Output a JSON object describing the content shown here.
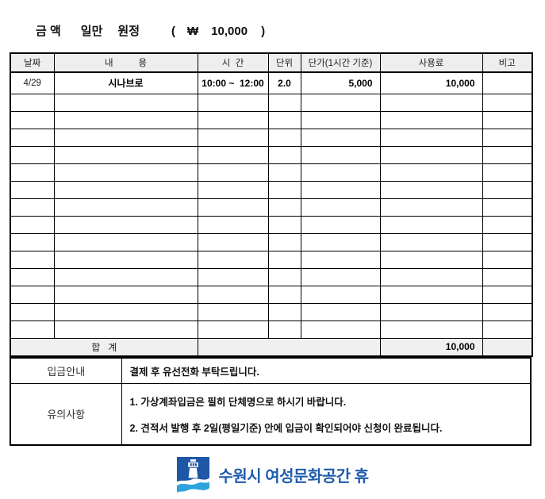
{
  "amount_line": {
    "label": "금 액",
    "amount_korean": "일만",
    "unit": "원정",
    "paren_open": "(",
    "currency_symbol": "₩",
    "amount_number": "10,000",
    "paren_close": ")"
  },
  "table": {
    "headers": {
      "date": "날짜",
      "content": "내          용",
      "time": "시  간",
      "unit": "단위",
      "unit_price": "단가(1시간 기준)",
      "fee": "사용료",
      "note": "비고"
    },
    "row": {
      "date": "4/29",
      "content": "시나브로",
      "time": "10:00 ~  12:00",
      "unit": "2.0",
      "unit_price": "5,000",
      "fee": "10,000",
      "note": ""
    },
    "empty_row_count": 14,
    "total": {
      "label": "합   계",
      "fee": "10,000"
    }
  },
  "info": {
    "payment_label": "입금안내",
    "payment_text": "결제 후 유선전화 부탁드립니다.",
    "notice_label": "유의사항",
    "notice_lines": [
      "1. 가상계좌입금은 필히 단체명으로 하시기 바랍니다.",
      "2. 견적서 발행 후 2일(평일기준) 안에 입금이 확인되어야 신청이 완료됩니다."
    ]
  },
  "footer": {
    "org_name": "수원시 여성문화공간 휴"
  },
  "colors": {
    "header_bg": "#eeeeee",
    "total_bg": "#f0f0f0",
    "border": "#000000",
    "logo_dark_blue": "#1d57a5",
    "logo_light_blue": "#2da4dd",
    "logo_text_blue": "#1f5cad"
  }
}
